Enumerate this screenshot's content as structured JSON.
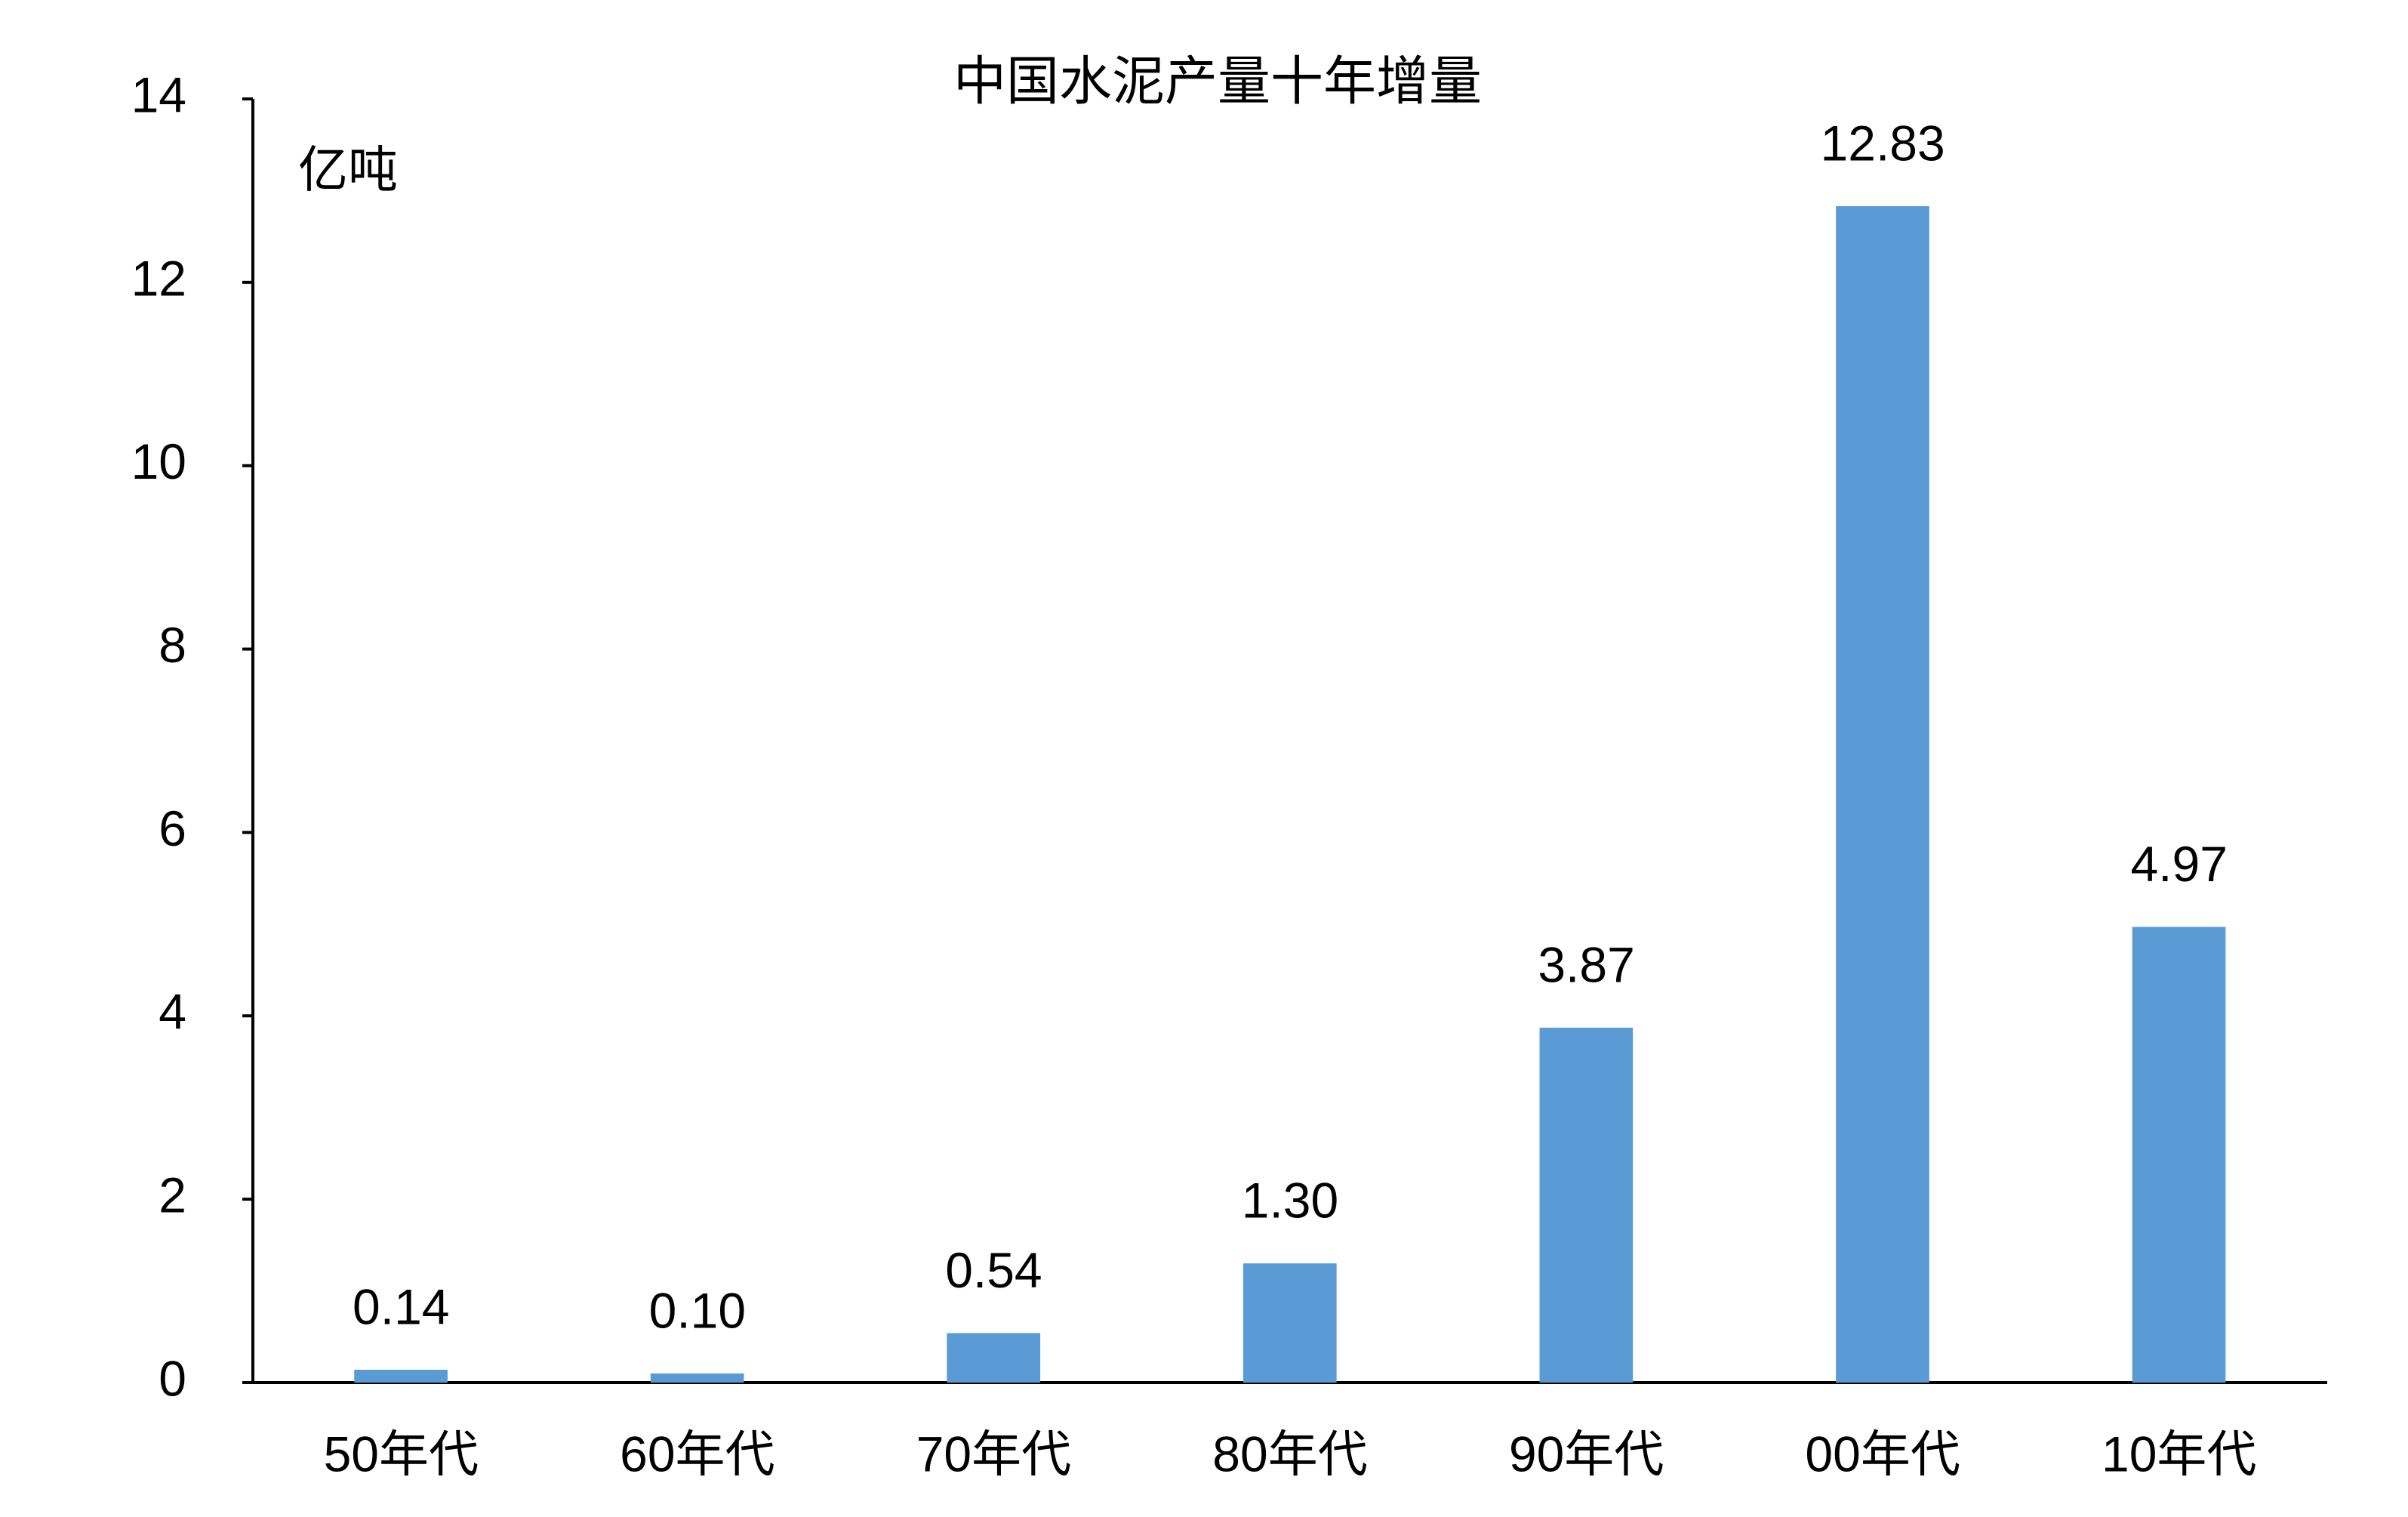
{
  "chart_data": {
    "type": "bar",
    "title": "中国水泥产量十年增量",
    "y_label": "亿吨",
    "categories": [
      "50年代",
      "60年代",
      "70年代",
      "80年代",
      "90年代",
      "00年代",
      "10年代"
    ],
    "values": [
      0.14,
      0.1,
      0.54,
      1.3,
      3.87,
      12.83,
      4.97
    ],
    "value_labels": [
      "0.14",
      "0.10",
      "0.54",
      "1.30",
      "3.87",
      "12.83",
      "4.97"
    ],
    "color": "#5b9bd5",
    "ylim": [
      0,
      14
    ],
    "yticks": [
      0,
      2,
      4,
      6,
      8,
      10,
      12,
      14
    ],
    "grid": false
  }
}
